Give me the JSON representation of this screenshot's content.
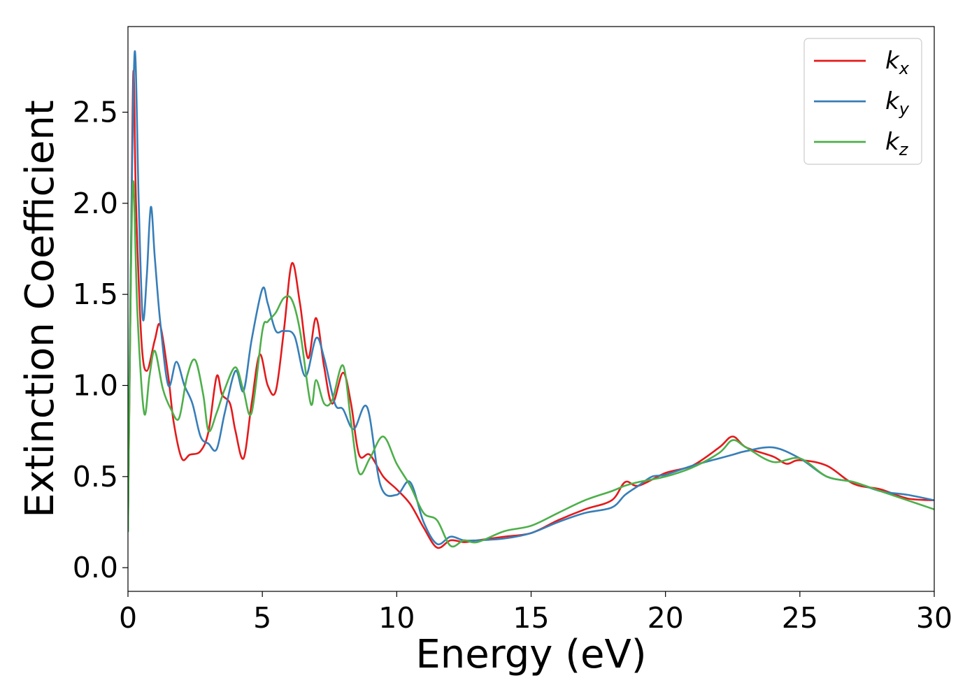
{
  "chart_data": {
    "type": "line",
    "title": "",
    "xlabel": "Energy (eV)",
    "ylabel": "Extinction Coefficient",
    "xlim": [
      0,
      30
    ],
    "ylim": [
      -0.13,
      2.97
    ],
    "xticks": [
      0,
      5,
      10,
      15,
      20,
      25,
      30
    ],
    "xtick_labels": [
      "0",
      "5",
      "10",
      "15",
      "20",
      "25",
      "30"
    ],
    "yticks": [
      0.0,
      0.5,
      1.0,
      1.5,
      2.0,
      2.5
    ],
    "ytick_labels": [
      "0.0",
      "0.5",
      "1.0",
      "1.5",
      "2.0",
      "2.5"
    ],
    "grid": false,
    "legend_position": "top-right",
    "series": [
      {
        "name": "k_x",
        "legend_main": "k",
        "legend_sub": "x",
        "color": "#e41a1c",
        "x": [
          0,
          0.1,
          0.2,
          0.3,
          0.5,
          0.7,
          1.0,
          1.2,
          1.5,
          1.7,
          2.0,
          2.3,
          2.7,
          3.0,
          3.3,
          3.5,
          3.8,
          4.0,
          4.3,
          4.6,
          4.9,
          5.2,
          5.5,
          5.8,
          6.1,
          6.4,
          6.7,
          7.0,
          7.3,
          7.6,
          8.0,
          8.3,
          8.6,
          9.0,
          9.5,
          10.0,
          10.5,
          11.0,
          11.5,
          12.0,
          12.5,
          13.0,
          14.0,
          15.0,
          16.0,
          17.0,
          18.0,
          18.5,
          19.0,
          20.0,
          21.0,
          22.0,
          22.5,
          23.0,
          24.0,
          24.5,
          25.0,
          26.0,
          27.0,
          28.0,
          29.0,
          30.0
        ],
        "values": [
          0.25,
          1.5,
          2.72,
          2.0,
          1.25,
          1.08,
          1.25,
          1.33,
          1.05,
          0.8,
          0.6,
          0.62,
          0.64,
          0.75,
          1.05,
          0.95,
          0.9,
          0.75,
          0.6,
          0.9,
          1.17,
          1.0,
          0.97,
          1.3,
          1.67,
          1.45,
          1.15,
          1.37,
          1.1,
          0.9,
          1.07,
          0.9,
          0.62,
          0.62,
          0.5,
          0.43,
          0.35,
          0.22,
          0.11,
          0.15,
          0.14,
          0.15,
          0.17,
          0.19,
          0.26,
          0.32,
          0.37,
          0.47,
          0.45,
          0.52,
          0.56,
          0.66,
          0.72,
          0.66,
          0.61,
          0.57,
          0.59,
          0.56,
          0.46,
          0.43,
          0.38,
          0.37
        ]
      },
      {
        "name": "k_y",
        "legend_main": "k",
        "legend_sub": "y",
        "color": "#377eb8",
        "x": [
          0,
          0.1,
          0.25,
          0.4,
          0.55,
          0.7,
          0.85,
          1.0,
          1.2,
          1.5,
          1.8,
          2.1,
          2.4,
          2.7,
          3.0,
          3.3,
          3.6,
          4.0,
          4.3,
          4.6,
          5.0,
          5.2,
          5.5,
          5.8,
          6.2,
          6.6,
          7.0,
          7.3,
          7.7,
          8.0,
          8.4,
          8.9,
          9.4,
          10.0,
          10.5,
          11.0,
          11.5,
          12.0,
          12.5,
          13.0,
          14.0,
          15.0,
          16.0,
          17.0,
          18.0,
          18.5,
          19.0,
          19.5,
          20.0,
          21.0,
          22.0,
          22.5,
          23.0,
          24.0,
          25.0,
          26.0,
          27.0,
          28.0,
          29.0,
          30.0
        ],
        "values": [
          0.2,
          1.6,
          2.83,
          2.0,
          1.37,
          1.6,
          1.98,
          1.7,
          1.35,
          1.0,
          1.13,
          1.0,
          0.9,
          0.72,
          0.68,
          0.65,
          0.85,
          1.08,
          0.97,
          1.25,
          1.53,
          1.45,
          1.3,
          1.3,
          1.27,
          1.05,
          1.26,
          1.15,
          0.9,
          0.87,
          0.76,
          0.88,
          0.45,
          0.4,
          0.47,
          0.25,
          0.13,
          0.17,
          0.15,
          0.15,
          0.16,
          0.19,
          0.25,
          0.3,
          0.33,
          0.4,
          0.45,
          0.5,
          0.51,
          0.56,
          0.6,
          0.62,
          0.64,
          0.66,
          0.6,
          0.5,
          0.47,
          0.42,
          0.4,
          0.37
        ]
      },
      {
        "name": "k_z",
        "legend_main": "k",
        "legend_sub": "z",
        "color": "#4daf4a",
        "x": [
          0,
          0.1,
          0.2,
          0.35,
          0.6,
          0.8,
          1.0,
          1.3,
          1.6,
          1.9,
          2.2,
          2.5,
          2.8,
          3.0,
          3.3,
          3.6,
          4.0,
          4.3,
          4.6,
          5.0,
          5.2,
          5.5,
          5.8,
          6.1,
          6.4,
          6.8,
          7.0,
          7.3,
          7.6,
          8.0,
          8.3,
          8.6,
          9.0,
          9.5,
          10.0,
          10.5,
          11.0,
          11.5,
          12.0,
          12.5,
          13.0,
          14.0,
          15.0,
          16.0,
          17.0,
          18.0,
          18.5,
          19.0,
          20.0,
          21.0,
          22.0,
          22.5,
          23.0,
          24.0,
          25.0,
          26.0,
          27.0,
          28.0,
          29.0,
          30.0
        ],
        "values": [
          0.2,
          1.5,
          2.12,
          1.4,
          0.85,
          1.05,
          1.19,
          0.98,
          0.87,
          0.82,
          1.05,
          1.14,
          0.95,
          0.75,
          0.85,
          0.98,
          1.1,
          0.97,
          0.85,
          1.3,
          1.35,
          1.4,
          1.48,
          1.47,
          1.3,
          0.9,
          1.03,
          0.9,
          0.92,
          1.11,
          0.8,
          0.52,
          0.6,
          0.72,
          0.57,
          0.45,
          0.3,
          0.26,
          0.12,
          0.15,
          0.14,
          0.2,
          0.23,
          0.3,
          0.37,
          0.42,
          0.45,
          0.47,
          0.5,
          0.55,
          0.63,
          0.7,
          0.66,
          0.58,
          0.6,
          0.5,
          0.47,
          0.42,
          0.37,
          0.32
        ]
      }
    ]
  }
}
